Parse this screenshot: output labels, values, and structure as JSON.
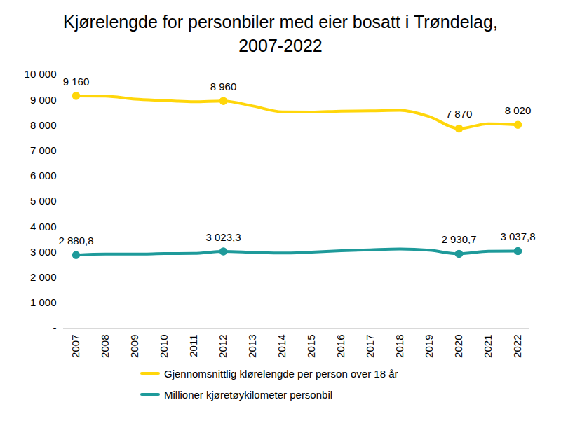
{
  "chart_data": {
    "type": "line",
    "title": "Kjørelengde for personbiler med eier bosatt i Trøndelag, 2007-2022",
    "categories": [
      "2007",
      "2008",
      "2009",
      "2010",
      "2011",
      "2012",
      "2013",
      "2014",
      "2015",
      "2016",
      "2017",
      "2018",
      "2019",
      "2020",
      "2021",
      "2022"
    ],
    "series": [
      {
        "name": "Gjennomsnittlig klørelengde per person over 18 år",
        "color": "#FFD60A",
        "values": [
          9160,
          9150,
          9030,
          8980,
          8930,
          8960,
          8760,
          8530,
          8520,
          8560,
          8570,
          8590,
          8340,
          7870,
          8060,
          8020
        ],
        "value_labels": [
          "9 160",
          null,
          null,
          null,
          null,
          "8 960",
          null,
          null,
          null,
          null,
          null,
          null,
          null,
          "7 870",
          null,
          "8 020"
        ]
      },
      {
        "name": "Millioner kjøretøykilometer personbil",
        "color": "#1E9A9A",
        "values": [
          2880.8,
          2920,
          2920,
          2940,
          2950,
          3023.3,
          2990,
          2960,
          3000,
          3050,
          3090,
          3120,
          3070,
          2930.7,
          3030,
          3037.8
        ],
        "value_labels": [
          "2 880,8",
          null,
          null,
          null,
          null,
          "3 023,3",
          null,
          null,
          null,
          null,
          null,
          null,
          null,
          "2 930,7",
          null,
          "3 037,8"
        ]
      }
    ],
    "ylim": [
      0,
      10000
    ],
    "yticks": [
      {
        "value": 0,
        "label": "-"
      },
      {
        "value": 1000,
        "label": "1 000"
      },
      {
        "value": 2000,
        "label": "2 000"
      },
      {
        "value": 3000,
        "label": "3 000"
      },
      {
        "value": 4000,
        "label": "4 000"
      },
      {
        "value": 5000,
        "label": "5 000"
      },
      {
        "value": 6000,
        "label": "6 000"
      },
      {
        "value": 7000,
        "label": "7 000"
      },
      {
        "value": 8000,
        "label": "8 000"
      },
      {
        "value": 9000,
        "label": "9 000"
      },
      {
        "value": 10000,
        "label": "10 000"
      }
    ],
    "grid": false,
    "data_labels": true,
    "legend": "bottom"
  }
}
